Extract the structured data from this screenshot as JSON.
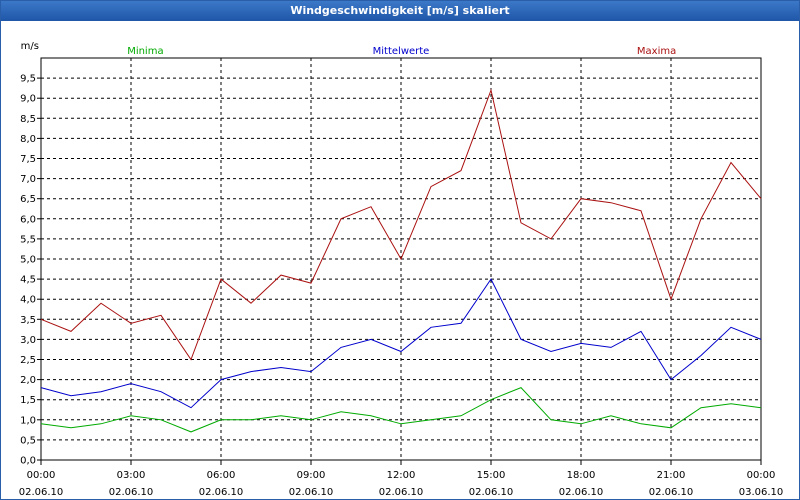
{
  "window": {
    "title": "Windgeschwindigkeit [m/s] skaliert"
  },
  "chart_data": {
    "type": "line",
    "title": "Windgeschwindigkeit [m/s] skaliert",
    "ylabel": "m/s",
    "xlabel": "",
    "ylim": [
      0,
      10
    ],
    "xlim_hours": [
      0,
      24
    ],
    "grid": true,
    "legend_placement": "top",
    "y_ticks": [
      "0,0",
      "0,5",
      "1,0",
      "1,5",
      "2,0",
      "2,5",
      "3,0",
      "3,5",
      "4,0",
      "4,5",
      "5,0",
      "5,5",
      "6,0",
      "6,5",
      "7,0",
      "7,5",
      "8,0",
      "8,5",
      "9,0",
      "9,5"
    ],
    "x_ticks": [
      {
        "time": "00:00",
        "date": "02.06.10"
      },
      {
        "time": "03:00",
        "date": "02.06.10"
      },
      {
        "time": "06:00",
        "date": "02.06.10"
      },
      {
        "time": "09:00",
        "date": "02.06.10"
      },
      {
        "time": "12:00",
        "date": "02.06.10"
      },
      {
        "time": "15:00",
        "date": "02.06.10"
      },
      {
        "time": "18:00",
        "date": "02.06.10"
      },
      {
        "time": "21:00",
        "date": "02.06.10"
      },
      {
        "time": "00:00",
        "date": "03.06.10"
      }
    ],
    "x_hours": [
      0,
      1,
      2,
      3,
      4,
      5,
      6,
      7,
      8,
      9,
      10,
      11,
      12,
      13,
      14,
      15,
      16,
      17,
      18,
      19,
      20,
      21,
      22,
      23,
      24
    ],
    "series": [
      {
        "name": "Minima",
        "color": "#00aa00",
        "values": [
          0.9,
          0.8,
          0.9,
          1.1,
          1.0,
          0.7,
          1.0,
          1.0,
          1.1,
          1.0,
          1.2,
          1.1,
          0.9,
          1.0,
          1.1,
          1.5,
          1.8,
          1.0,
          0.9,
          1.1,
          0.9,
          0.8,
          1.3,
          1.4,
          1.3
        ]
      },
      {
        "name": "Mittelwerte",
        "color": "#0000cc",
        "values": [
          1.8,
          1.6,
          1.7,
          1.9,
          1.7,
          1.3,
          2.0,
          2.2,
          2.3,
          2.2,
          2.8,
          3.0,
          2.7,
          3.3,
          3.4,
          4.5,
          3.0,
          2.7,
          2.9,
          2.8,
          3.2,
          2.0,
          2.6,
          3.3,
          3.0
        ]
      },
      {
        "name": "Maxima",
        "color": "#aa1111",
        "values": [
          3.5,
          3.2,
          3.9,
          3.4,
          3.6,
          2.5,
          4.5,
          3.9,
          4.6,
          4.4,
          6.0,
          6.3,
          5.0,
          6.8,
          7.2,
          9.2,
          5.9,
          5.5,
          6.5,
          6.4,
          6.2,
          4.0,
          6.0,
          7.4,
          6.5
        ]
      }
    ]
  }
}
